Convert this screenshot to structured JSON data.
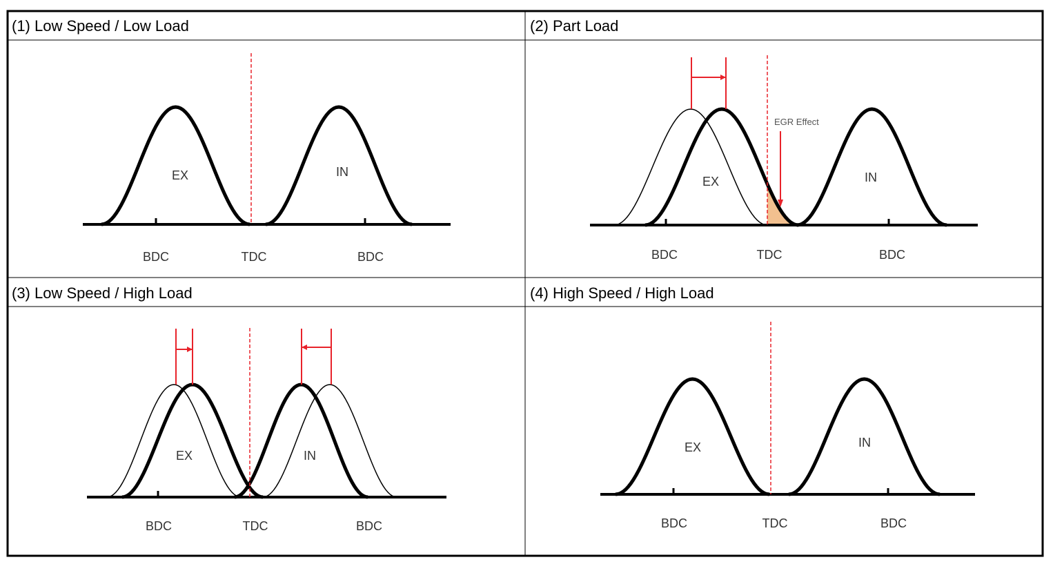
{
  "colors": {
    "border": "#000000",
    "timing_marker": "#e8222a",
    "egr_fill": "#f2c08f",
    "curve": "#000000"
  },
  "panels": [
    {
      "title": "(1) Low Speed / Low Load",
      "exhaust_label": "EX",
      "intake_label": "IN",
      "axis_labels": [
        "BDC",
        "TDC",
        "BDC"
      ]
    },
    {
      "title": "(2) Part Load",
      "exhaust_label": "EX",
      "intake_label": "IN",
      "axis_labels": [
        "BDC",
        "TDC",
        "BDC"
      ],
      "annotation": "EGR Effect"
    },
    {
      "title": "(3) Low Speed / High Load",
      "exhaust_label": "EX",
      "intake_label": "IN",
      "axis_labels": [
        "BDC",
        "TDC",
        "BDC"
      ]
    },
    {
      "title": "(4) High Speed / High Load",
      "exhaust_label": "EX",
      "intake_label": "IN",
      "axis_labels": [
        "BDC",
        "TDC",
        "BDC"
      ]
    }
  ]
}
